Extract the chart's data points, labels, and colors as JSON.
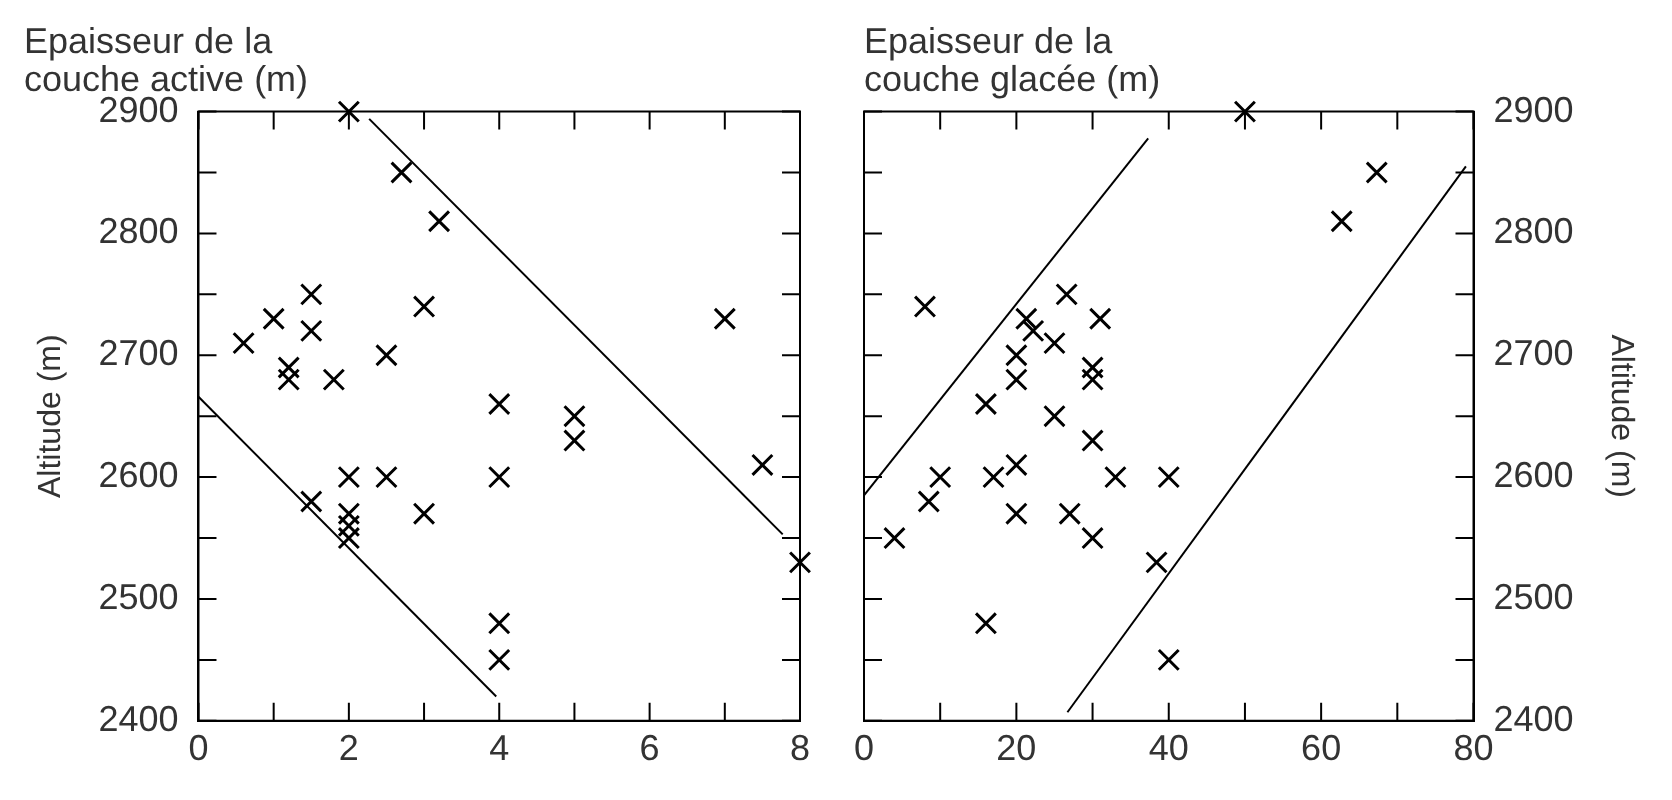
{
  "chart_data": [
    {
      "type": "scatter",
      "title": "Epaisseur de la couche active (m)",
      "ylabel": "Altitude (m)",
      "marker": "cross",
      "grid": false,
      "legend": false,
      "xlim": [
        0,
        8
      ],
      "xticks": [
        0,
        {
          "value": 1,
          "label": null
        },
        2,
        {
          "value": 3,
          "label": null
        },
        4,
        {
          "value": 5,
          "label": null
        },
        6,
        {
          "value": 7,
          "label": null
        },
        8
      ],
      "ylim": [
        2400,
        2900
      ],
      "yticks": [
        2400,
        {
          "value": 2450,
          "label": null
        },
        2500,
        {
          "value": 2550,
          "label": null
        },
        2600,
        {
          "value": 2650,
          "label": null
        },
        2700,
        {
          "value": 2750,
          "label": null
        },
        2800,
        {
          "value": 2850,
          "label": null
        },
        2900
      ],
      "series": [
        {
          "color": "#000000",
          "x": [
            0.6,
            1.0,
            1.2,
            1.2,
            1.5,
            1.5,
            1.8,
            2.0,
            2.0,
            2.0,
            2.0,
            2.0,
            1.5,
            2.5,
            2.5,
            2.7,
            3.0,
            3.0,
            3.2,
            4.0,
            4.0,
            4.0,
            4.0,
            5.0,
            5.0,
            7.0,
            7.5,
            8.0
          ],
          "values": [
            2710,
            2730,
            2690,
            2680,
            2750,
            2720,
            2680,
            2900,
            2600,
            2570,
            2560,
            2550,
            2580,
            2700,
            2600,
            2850,
            2740,
            2570,
            2810,
            2660,
            2600,
            2480,
            2450,
            2650,
            2630,
            2730,
            2610,
            2530
          ]
        },
        {
          "type": "line",
          "color": "#000000",
          "marker": "none",
          "x": [
            2.27,
            7.77
          ],
          "values": [
            2894,
            2553
          ]
        },
        {
          "type": "line",
          "color": "#000000",
          "marker": "none",
          "x": [
            0,
            3.96
          ],
          "values": [
            2666,
            2420
          ]
        }
      ]
    },
    {
      "type": "scatter",
      "title": "Epaisseur de la couche glacée (m)",
      "y2label": "Altitude (m)",
      "marker": "cross",
      "grid": false,
      "legend": false,
      "xlim": [
        0,
        80
      ],
      "xticks": [
        0,
        {
          "value": 10,
          "label": null
        },
        20,
        {
          "value": 30,
          "label": null
        },
        40,
        {
          "value": 50,
          "label": null
        },
        60,
        {
          "value": 70,
          "label": null
        },
        80
      ],
      "y2lim": [
        2400,
        2900
      ],
      "y2ticks": [
        2400,
        {
          "value": 2450,
          "label": null
        },
        2500,
        {
          "value": 2550,
          "label": null
        },
        2600,
        {
          "value": 2650,
          "label": null
        },
        2700,
        {
          "value": 2750,
          "label": null
        },
        2800,
        {
          "value": 2850,
          "label": null
        },
        2900
      ],
      "series": [
        {
          "color": "#000000",
          "axis": "y2",
          "x": [
            4,
            8,
            8.5,
            10,
            16,
            16,
            17,
            20,
            20,
            20,
            20,
            21.3,
            22.2,
            25,
            25,
            26.6,
            27,
            31,
            30,
            30,
            30,
            30,
            33,
            38.4,
            40,
            40,
            50,
            62.7,
            67.3
          ],
          "values": [
            2550,
            2740,
            2580,
            2600,
            2480,
            2660,
            2600,
            2610,
            2680,
            2700,
            2570,
            2730,
            2720,
            2710,
            2650,
            2750,
            2570,
            2730,
            2690,
            2680,
            2630,
            2550,
            2600,
            2530,
            2600,
            2450,
            2900,
            2810,
            2850
          ]
        },
        {
          "type": "line",
          "axis": "y2",
          "color": "#000000",
          "marker": "none",
          "x": [
            0,
            37.3
          ],
          "values": [
            2585,
            2878
          ]
        },
        {
          "type": "line",
          "axis": "y2",
          "color": "#000000",
          "marker": "none",
          "x": [
            26.7,
            79
          ],
          "values": [
            2407,
            2855
          ]
        }
      ]
    }
  ]
}
